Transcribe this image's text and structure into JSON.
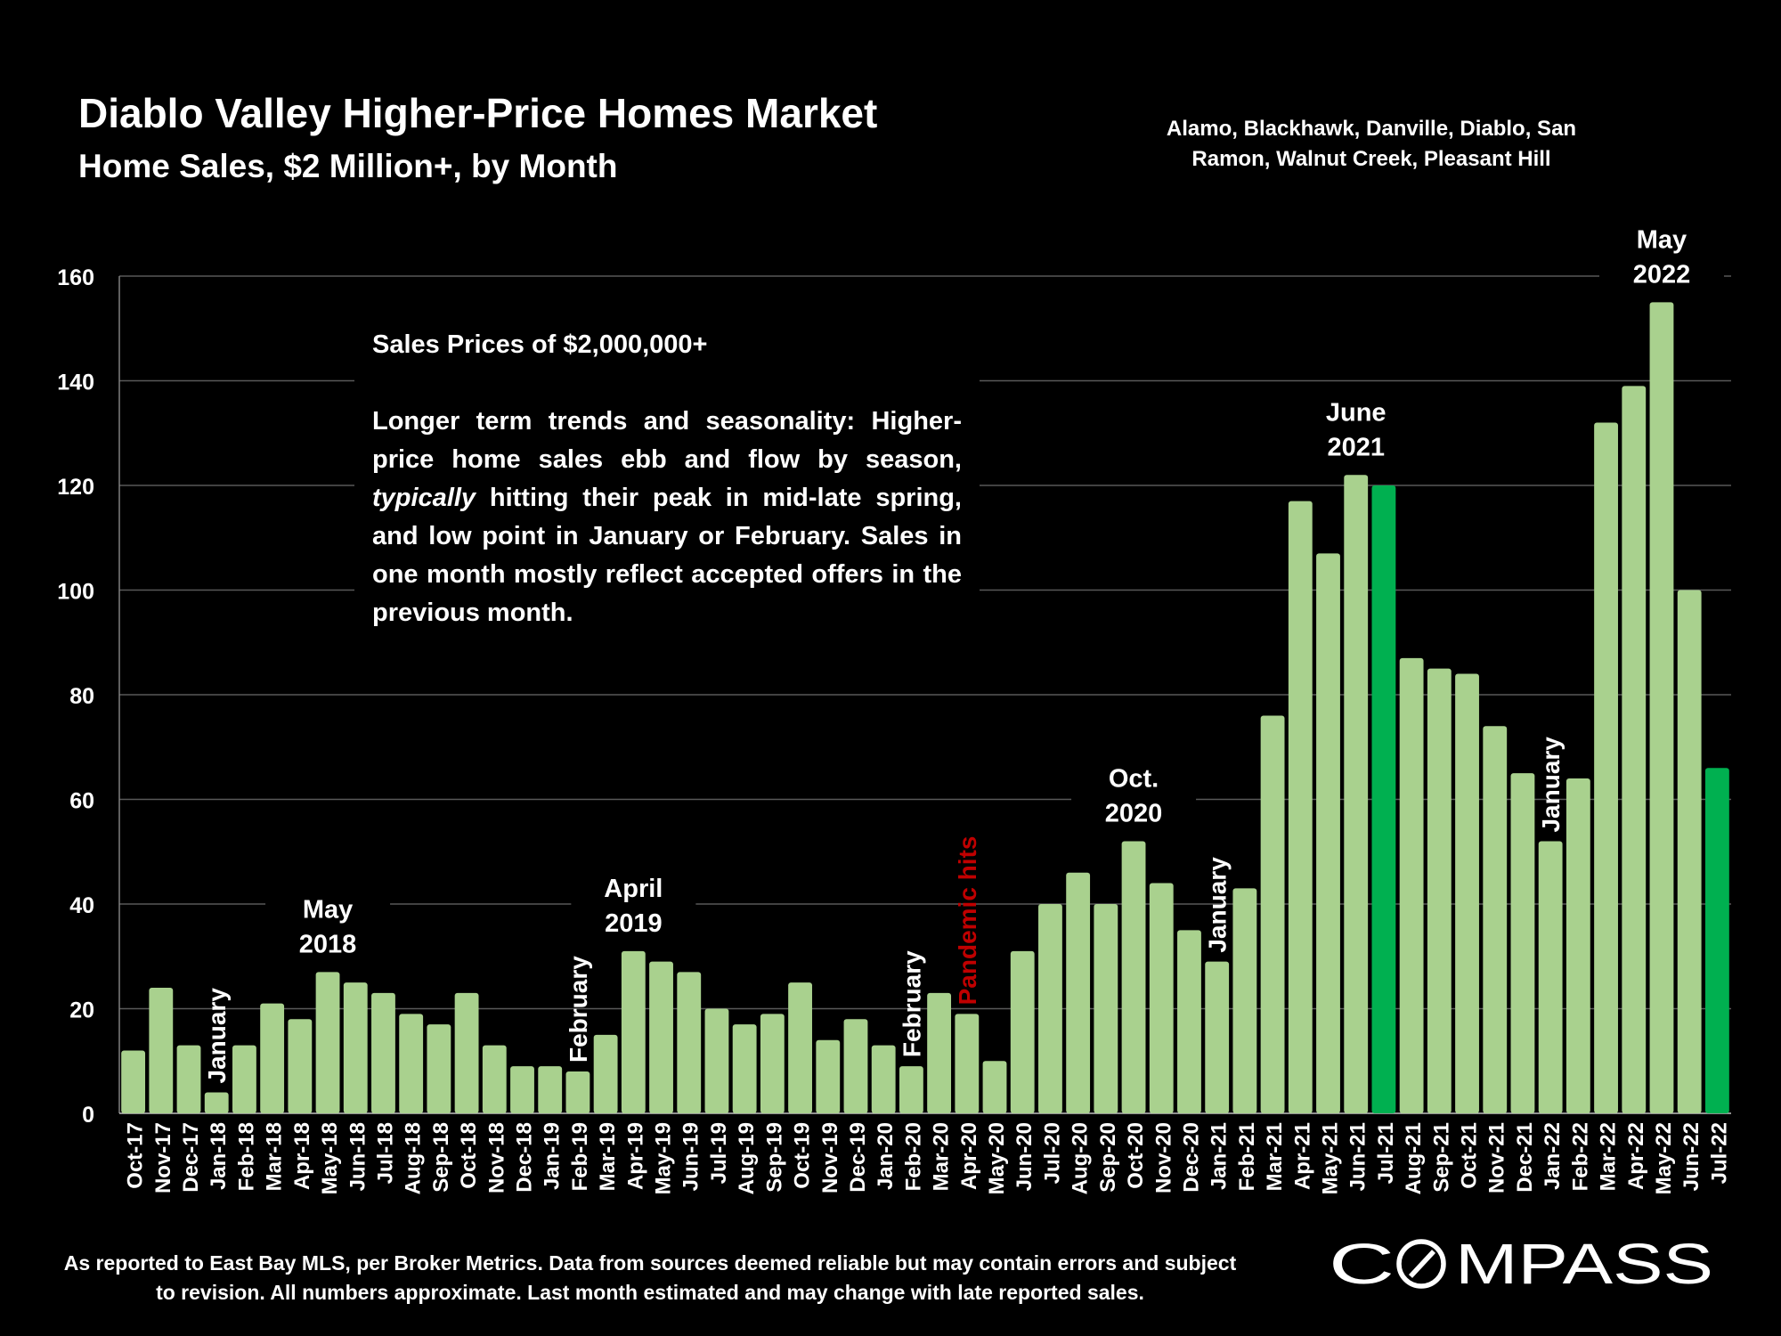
{
  "header": {
    "title": "Diablo Valley Higher-Price Homes Market",
    "subtitle": "Home Sales, $2 Million+, by Month",
    "region": "Alamo, Blackhawk, Danville, Diablo, San Ramon, Walnut Creek, Pleasant Hill"
  },
  "notes": {
    "heading": "Sales Prices of $2,000,000+",
    "body_before": "Longer term trends and seasonality: Higher-price home sales ebb and flow by season, ",
    "body_emphasis": "typically",
    "body_after": " hitting their peak in mid-late spring, and low point in January or February. Sales in one month mostly reflect accepted offers in the previous month."
  },
  "footnote": "As reported to East Bay MLS, per Broker Metrics. Data from sources deemed reliable but may contain errors and subject to revision. All numbers approximate. Last month estimated and may change with late reported sales.",
  "brand": {
    "logo_text": "COMPASS",
    "logo_icon": "compass-o-slash-icon"
  },
  "colors": {
    "bar": "#a9d18e",
    "highlight_bar": "#00b050",
    "background": "#000000",
    "pandemic_label": "#c00000",
    "gridline": "#595959"
  },
  "chart_data": {
    "type": "bar",
    "ylim": [
      0,
      160
    ],
    "yticks": [
      0,
      20,
      40,
      60,
      80,
      100,
      120,
      140,
      160
    ],
    "grid": true,
    "categories": [
      "Oct-17",
      "Nov-17",
      "Dec-17",
      "Jan-18",
      "Feb-18",
      "Mar-18",
      "Apr-18",
      "May-18",
      "Jun-18",
      "Jul-18",
      "Aug-18",
      "Sep-18",
      "Oct-18",
      "Nov-18",
      "Dec-18",
      "Jan-19",
      "Feb-19",
      "Mar-19",
      "Apr-19",
      "May-19",
      "Jun-19",
      "Jul-19",
      "Aug-19",
      "Sep-19",
      "Oct-19",
      "Nov-19",
      "Dec-19",
      "Jan-20",
      "Feb-20",
      "Mar-20",
      "Apr-20",
      "May-20",
      "Jun-20",
      "Jul-20",
      "Aug-20",
      "Sep-20",
      "Oct-20",
      "Nov-20",
      "Dec-20",
      "Jan-21",
      "Feb-21",
      "Mar-21",
      "Apr-21",
      "May-21",
      "Jun-21",
      "Jul-21",
      "Aug-21",
      "Sep-21",
      "Oct-21",
      "Nov-21",
      "Dec-21",
      "Jan-22",
      "Feb-22",
      "Mar-22",
      "Apr-22",
      "May-22",
      "Jun-22",
      "Jul-22"
    ],
    "values": [
      12,
      24,
      13,
      4,
      13,
      21,
      18,
      27,
      25,
      23,
      19,
      17,
      23,
      13,
      9,
      9,
      8,
      15,
      31,
      29,
      27,
      20,
      17,
      19,
      25,
      14,
      18,
      13,
      9,
      23,
      19,
      10,
      31,
      40,
      46,
      40,
      52,
      44,
      35,
      29,
      43,
      76,
      117,
      107,
      122,
      120,
      87,
      85,
      84,
      74,
      65,
      52,
      64,
      132,
      139,
      155,
      100,
      66
    ],
    "highlighted": [
      "Jul-21",
      "Jul-22"
    ],
    "annotations": [
      {
        "category": "Jan-18",
        "text": "January",
        "rotated": true
      },
      {
        "category": "May-18",
        "text": "May 2018",
        "rotated": false
      },
      {
        "category": "Feb-19",
        "text": "February",
        "rotated": true
      },
      {
        "category": "Apr-19",
        "text": "April 2019",
        "rotated": false
      },
      {
        "category": "Feb-20",
        "text": "February",
        "rotated": true
      },
      {
        "category": "Apr-20",
        "text": "Pandemic hits",
        "rotated": true,
        "color": "#c00000"
      },
      {
        "category": "Oct-20",
        "text": "Oct. 2020",
        "rotated": false
      },
      {
        "category": "Jan-21",
        "text": "January",
        "rotated": true
      },
      {
        "category": "Jun-21",
        "text": "June 2021",
        "rotated": false
      },
      {
        "category": "Jan-22",
        "text": "January",
        "rotated": true
      },
      {
        "category": "May-22",
        "text": "May 2022",
        "rotated": false
      }
    ]
  }
}
